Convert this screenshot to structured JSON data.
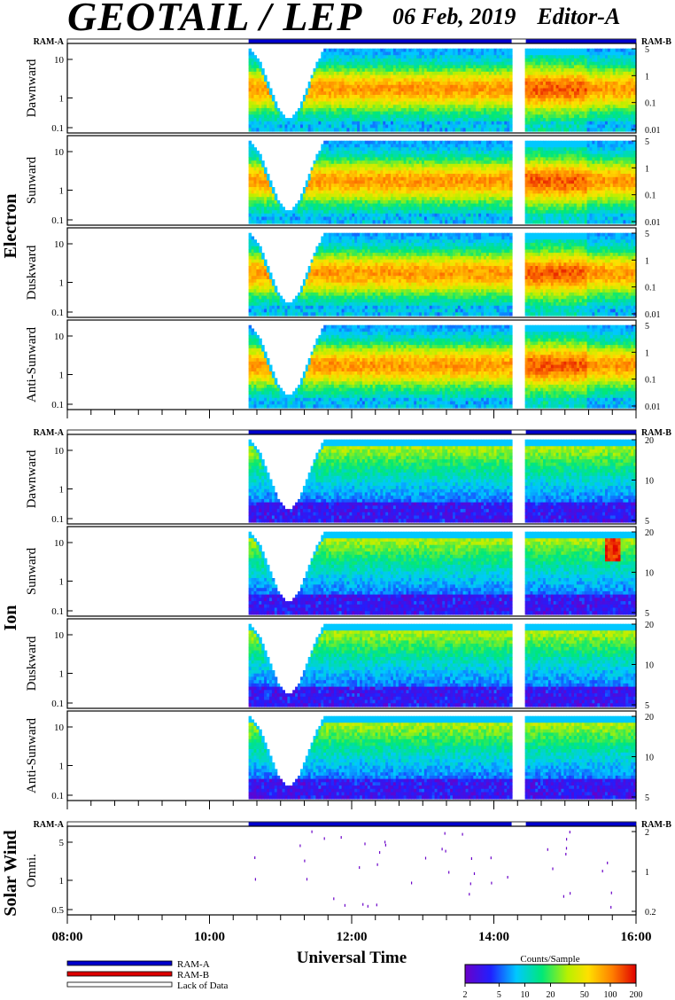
{
  "header": {
    "title": "GEOTAIL / LEP",
    "date": "06 Feb, 2019",
    "editor": "Editor-A"
  },
  "chart_data": {
    "type": "heatmap",
    "xlabel": "Universal Time",
    "x_ticks": [
      "08:00",
      "10:00",
      "12:00",
      "14:00",
      "16:00"
    ],
    "x_range_hours": [
      8,
      16
    ],
    "data_coverage_hours": [
      [
        10.55,
        14.25
      ],
      [
        14.45,
        16.0
      ]
    ],
    "ram_a_label": "RAM-A",
    "ram_b_label": "RAM-B",
    "groups": [
      {
        "name": "Electron",
        "panels": [
          {
            "label": "Dawnward",
            "left_ticks": [
              "10",
              "1",
              "0.1"
            ],
            "right_ticks": [
              "5",
              "1",
              "0.1",
              "0.01"
            ]
          },
          {
            "label": "Sunward",
            "left_ticks": [
              "10",
              "1",
              "0.1"
            ],
            "right_ticks": [
              "5",
              "1",
              "0.1",
              "0.01"
            ]
          },
          {
            "label": "Duskward",
            "left_ticks": [
              "10",
              "1",
              "0.1"
            ],
            "right_ticks": [
              "5",
              "1",
              "0.1",
              "0.01"
            ]
          },
          {
            "label": "Anti-Sunward",
            "left_ticks": [
              "10",
              "1",
              "0.1"
            ],
            "right_ticks": [
              "5",
              "1",
              "0.1",
              "0.01"
            ]
          }
        ]
      },
      {
        "name": "Ion",
        "panels": [
          {
            "label": "Dawnward",
            "left_ticks": [
              "10",
              "1",
              "0.1"
            ],
            "right_ticks": [
              "20",
              "10",
              "5"
            ]
          },
          {
            "label": "Sunward",
            "left_ticks": [
              "10",
              "1",
              "0.1"
            ],
            "right_ticks": [
              "20",
              "10",
              "5"
            ]
          },
          {
            "label": "Duskward",
            "left_ticks": [
              "10",
              "1",
              "0.1"
            ],
            "right_ticks": [
              "20",
              "10",
              "5"
            ]
          },
          {
            "label": "Anti-Sunward",
            "left_ticks": [
              "10",
              "1",
              "0.1"
            ],
            "right_ticks": [
              "20",
              "10",
              "5"
            ]
          }
        ]
      },
      {
        "name": "Solar Wind",
        "panels": [
          {
            "label": "Omni.",
            "left_ticks": [
              "5",
              "1",
              "0.5"
            ],
            "right_ticks": [
              "2",
              "1",
              "0.2"
            ]
          }
        ]
      }
    ],
    "legend": {
      "items": [
        "RAM-A",
        "RAM-B",
        "Lack of Data"
      ],
      "colors": [
        "#0000cc",
        "#dd0000",
        "#ffffff"
      ]
    },
    "colorbar": {
      "title": "Counts/Sample",
      "ticks": [
        "2",
        "5",
        "10",
        "20",
        "50",
        "100",
        "200"
      ],
      "scale": "log"
    }
  }
}
